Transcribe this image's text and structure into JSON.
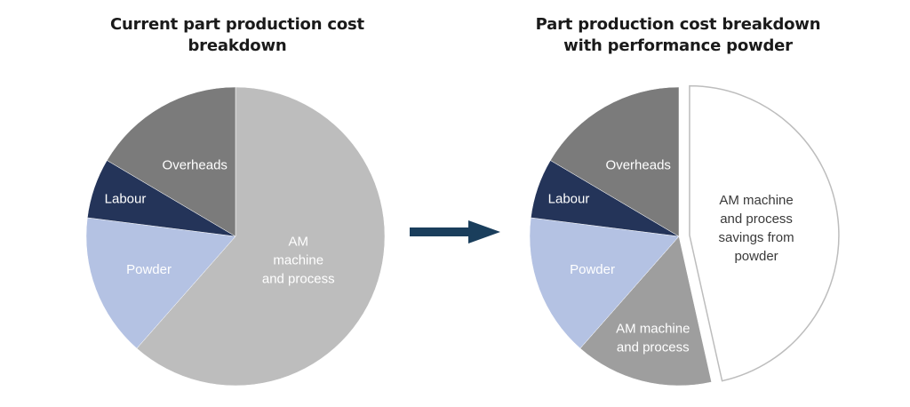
{
  "chart_data": [
    {
      "type": "pie",
      "title": "Current part production cost breakdown",
      "slices": [
        {
          "label": "AM machine and process",
          "value": 61.5,
          "color": "#bdbdbd",
          "text_color": "#ffffff",
          "lines": [
            "AM",
            "machine",
            "and process"
          ]
        },
        {
          "label": "Powder",
          "value": 15.5,
          "color": "#b4c2e3",
          "text_color": "#ffffff",
          "lines": [
            "Powder"
          ]
        },
        {
          "label": "Labour",
          "value": 6.5,
          "color": "#243459",
          "text_color": "#ffffff",
          "lines": [
            "Labour"
          ]
        },
        {
          "label": "Overheads",
          "value": 16.5,
          "color": "#7b7b7b",
          "text_color": "#ffffff",
          "lines": [
            "Overheads"
          ]
        }
      ]
    },
    {
      "type": "pie",
      "title": "Part production cost breakdown with performance powder",
      "slices": [
        {
          "label": "AM machine and process savings from powder",
          "value": 46.5,
          "color": "#ffffff",
          "text_color": "#3a3a3a",
          "exploded": true,
          "lines": [
            "AM machine",
            "and process",
            "savings from",
            "powder"
          ]
        },
        {
          "label": "AM machine and process",
          "value": 15,
          "color": "#9e9e9e",
          "text_color": "#ffffff",
          "lines": [
            "AM machine",
            "and process"
          ]
        },
        {
          "label": "Powder",
          "value": 15.5,
          "color": "#b4c2e3",
          "text_color": "#ffffff",
          "lines": [
            "Powder"
          ]
        },
        {
          "label": "Labour",
          "value": 6.5,
          "color": "#243459",
          "text_color": "#ffffff",
          "lines": [
            "Labour"
          ]
        },
        {
          "label": "Overheads",
          "value": 16.5,
          "color": "#7b7b7b",
          "text_color": "#ffffff",
          "lines": [
            "Overheads"
          ]
        }
      ]
    }
  ],
  "arrow_color": "#1a3e5c"
}
